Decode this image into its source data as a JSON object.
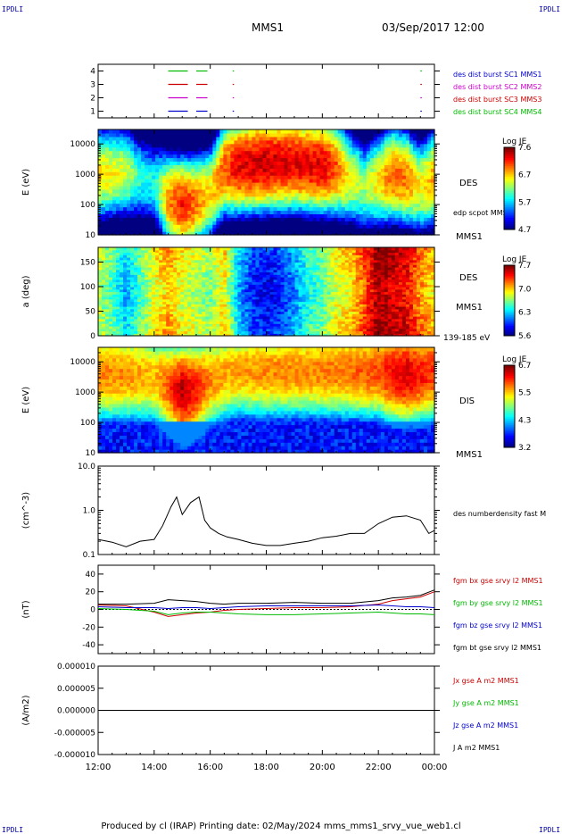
{
  "header": {
    "title": "MMS1",
    "date": "03/Sep/2017 12:00",
    "corner_left": "IPDLI",
    "corner_right": "IPDLI",
    "corner_bl": "IPDLI",
    "corner_br": "IPDLI"
  },
  "footer": {
    "text": "Produced by cl (IRAP)   Printing date: 02/May/2024   mms_mms1_srvy_vue_web1.cl"
  },
  "x_axis": {
    "ticks": [
      "12:00",
      "14:00",
      "16:00",
      "18:00",
      "20:00",
      "22:00",
      "00:00"
    ],
    "hours": [
      12,
      14,
      16,
      18,
      20,
      22,
      24
    ],
    "range": [
      12,
      24
    ]
  },
  "colors": {
    "blue": "#0000cc",
    "magenta": "#cc00cc",
    "red": "#cc0000",
    "green": "#00bb00",
    "black": "#000000"
  },
  "chart_data": [
    {
      "panel": "burst",
      "type": "scatter",
      "ylim": [
        0.5,
        4.5
      ],
      "yticks": [
        "1",
        "2",
        "3",
        "4"
      ],
      "legend": [
        {
          "text": "des dist burst SC1 MMS1",
          "color": "#0000cc"
        },
        {
          "text": "des dist burst SC2 MMS2",
          "color": "#cc00cc"
        },
        {
          "text": "des dist burst SC3 MMS3",
          "color": "#cc0000"
        },
        {
          "text": "des dist burst SC4 MMS4",
          "color": "#00bb00"
        }
      ],
      "series": [
        {
          "level": 1,
          "color": "#0000cc",
          "intervals": [
            [
              14.5,
              15.2
            ],
            [
              15.5,
              15.9
            ],
            [
              16.8,
              16.83
            ],
            [
              23.5,
              23.55
            ]
          ]
        },
        {
          "level": 2,
          "color": "#cc00cc",
          "intervals": [
            [
              14.5,
              15.2
            ],
            [
              15.5,
              15.9
            ],
            [
              16.8,
              16.83
            ],
            [
              23.5,
              23.55
            ]
          ]
        },
        {
          "level": 3,
          "color": "#cc0000",
          "intervals": [
            [
              14.5,
              15.2
            ],
            [
              15.5,
              15.9
            ],
            [
              16.8,
              16.83
            ],
            [
              23.5,
              23.55
            ]
          ]
        },
        {
          "level": 4,
          "color": "#00bb00",
          "intervals": [
            [
              14.5,
              15.2
            ],
            [
              15.5,
              15.9
            ],
            [
              16.8,
              16.83
            ],
            [
              23.5,
              23.55
            ]
          ]
        }
      ]
    },
    {
      "panel": "des_energy",
      "type": "heatmap",
      "ylabel": "E (eV)",
      "log": true,
      "ylim": [
        10,
        30000
      ],
      "yticks": [
        "10",
        "100",
        "1000",
        "10000"
      ],
      "label": "DES",
      "sublabel": "MMS1",
      "overlay_label": "edp scpot MMS1",
      "colorbar": {
        "title": "Log JE",
        "ticks": [
          "7.6",
          "6.7",
          "5.7",
          "4.7"
        ],
        "range": [
          4.7,
          7.6
        ]
      },
      "peak_energy_profile": {
        "hours": [
          12,
          13,
          13.5,
          14,
          14.5,
          15,
          15.5,
          16,
          16.5,
          17,
          18,
          19,
          20,
          20.5,
          21,
          21.5,
          22,
          22.5,
          23,
          23.5,
          24
        ],
        "logE_peak": [
          3.0,
          3.1,
          2.9,
          2.7,
          2.2,
          2.0,
          2.1,
          2.4,
          3.2,
          3.3,
          3.4,
          3.4,
          3.3,
          3.2,
          2.9,
          2.6,
          2.8,
          3.0,
          2.9,
          2.6,
          2.9
        ],
        "intensity": [
          6.6,
          6.4,
          5.9,
          5.8,
          6.8,
          7.2,
          6.9,
          6.6,
          7.0,
          7.3,
          7.4,
          7.3,
          7.3,
          7.0,
          6.5,
          6.2,
          6.6,
          7.0,
          6.9,
          6.5,
          6.8
        ]
      }
    },
    {
      "panel": "des_pitch",
      "type": "heatmap",
      "ylabel": "a (deg)",
      "ylim": [
        0,
        180
      ],
      "yticks": [
        "0",
        "50",
        "100",
        "150"
      ],
      "label": "DES",
      "sublabel": "MMS1",
      "energy_band": "139-185 eV",
      "colorbar": {
        "title": "Log JE",
        "ticks": [
          "7.7",
          "7.0",
          "6.3",
          "5.6"
        ],
        "range": [
          5.6,
          7.7
        ]
      },
      "level_profile": {
        "hours": [
          12,
          12.5,
          13,
          13.5,
          14,
          14.5,
          15,
          15.5,
          16,
          16.5,
          17,
          17.5,
          18,
          18.5,
          19,
          19.5,
          20,
          20.5,
          21,
          21.5,
          22,
          22.5,
          23,
          23.5,
          24
        ],
        "level": [
          6.7,
          6.5,
          6.2,
          6.5,
          6.8,
          7.0,
          6.8,
          6.7,
          6.6,
          6.9,
          6.2,
          5.9,
          5.8,
          5.9,
          6.1,
          6.4,
          6.5,
          6.8,
          6.9,
          7.2,
          7.6,
          7.5,
          7.4,
          7.1,
          6.9
        ]
      }
    },
    {
      "panel": "dis_energy",
      "type": "heatmap",
      "ylabel": "E (eV)",
      "log": true,
      "ylim": [
        10,
        30000
      ],
      "yticks": [
        "10",
        "100",
        "1000",
        "10000"
      ],
      "label": "DIS",
      "sublabel": "MMS1",
      "colorbar": {
        "title": "Log JE",
        "ticks": [
          "6.7",
          "5.5",
          "4.3",
          "3.2"
        ],
        "range": [
          3.2,
          6.7
        ]
      },
      "peak_energy_profile": {
        "hours": [
          12,
          13,
          14,
          14.5,
          15,
          15.5,
          16,
          16.5,
          17,
          18,
          19,
          20,
          21,
          22,
          22.5,
          23,
          23.5,
          24
        ],
        "logE_peak": [
          3.6,
          3.6,
          3.5,
          3.2,
          3.0,
          3.1,
          3.4,
          3.6,
          3.7,
          3.7,
          3.7,
          3.7,
          3.7,
          3.7,
          3.6,
          3.6,
          3.6,
          3.7
        ],
        "intensity": [
          5.8,
          5.8,
          5.6,
          6.0,
          6.5,
          6.2,
          5.8,
          5.7,
          5.7,
          5.8,
          5.8,
          5.8,
          5.9,
          6.0,
          6.3,
          6.4,
          6.2,
          6.1
        ]
      }
    },
    {
      "panel": "density",
      "type": "line",
      "ylabel": "(cm^-3)",
      "log": true,
      "ylim": [
        0.1,
        10
      ],
      "yticks": [
        "0.1",
        "1.0",
        "10.0"
      ],
      "legend": [
        {
          "text": "des numberdensity fast M",
          "color": "#000000"
        }
      ],
      "x": [
        12,
        12.5,
        13,
        13.5,
        14,
        14.3,
        14.6,
        14.8,
        15,
        15.3,
        15.6,
        15.8,
        16,
        16.3,
        16.6,
        17,
        17.5,
        18,
        18.5,
        19,
        19.5,
        20,
        20.5,
        21,
        21.5,
        22,
        22.5,
        23,
        23.5,
        23.8,
        24
      ],
      "values": [
        0.22,
        0.19,
        0.15,
        0.2,
        0.22,
        0.45,
        1.2,
        2.0,
        0.8,
        1.5,
        2.0,
        0.6,
        0.4,
        0.3,
        0.25,
        0.22,
        0.18,
        0.16,
        0.16,
        0.18,
        0.2,
        0.24,
        0.26,
        0.3,
        0.3,
        0.5,
        0.7,
        0.75,
        0.6,
        0.3,
        0.35
      ]
    },
    {
      "panel": "fgm",
      "type": "line",
      "ylabel": "(nT)",
      "ylim": [
        -50,
        50
      ],
      "yticks": [
        "-40",
        "-20",
        "0",
        "20",
        "40"
      ],
      "legend": [
        {
          "text": "fgm bx gse srvy l2 MMS1",
          "color": "#cc0000"
        },
        {
          "text": "fgm by gse srvy l2 MMS1",
          "color": "#00bb00"
        },
        {
          "text": "fgm bz gse srvy l2 MMS1",
          "color": "#0000cc"
        },
        {
          "text": "fgm bt gse srvy l2 MMS1",
          "color": "#000000"
        }
      ],
      "x": [
        12,
        13,
        14,
        14.5,
        15,
        15.5,
        16,
        16.5,
        17,
        18,
        19,
        20,
        21,
        22,
        22.5,
        23,
        23.5,
        24
      ],
      "series": [
        {
          "name": "bx",
          "color": "#cc0000",
          "values": [
            5,
            4,
            -3,
            -8,
            -6,
            -4,
            -3,
            -1,
            0,
            1,
            2,
            2,
            3,
            6,
            10,
            12,
            14,
            20
          ]
        },
        {
          "name": "by",
          "color": "#00bb00",
          "values": [
            1,
            0,
            -2,
            -6,
            -4,
            -3,
            -3,
            -4,
            -5,
            -6,
            -6,
            -5,
            -4,
            -3,
            -4,
            -5,
            -5,
            -6
          ]
        },
        {
          "name": "bz",
          "color": "#0000cc",
          "values": [
            3,
            2,
            2,
            1,
            2,
            2,
            1,
            2,
            3,
            4,
            4,
            4,
            4,
            5,
            4,
            3,
            3,
            2
          ]
        },
        {
          "name": "bt",
          "color": "#000000",
          "values": [
            6,
            6,
            7,
            11,
            10,
            9,
            7,
            6,
            7,
            7,
            8,
            7,
            7,
            10,
            13,
            14,
            16,
            22
          ]
        }
      ]
    },
    {
      "panel": "current",
      "type": "line",
      "ylabel": "(A/m2)",
      "ylim": [
        -1e-05,
        1e-05
      ],
      "yticks": [
        "-0.000010",
        "-0.000005",
        "0.000000",
        "0.000005",
        "0.000010"
      ],
      "legend": [
        {
          "text": "Jx gse A m2 MMS1",
          "color": "#cc0000"
        },
        {
          "text": "Jy gse A m2 MMS1",
          "color": "#00bb00"
        },
        {
          "text": "Jz gse A m2 MMS1",
          "color": "#0000cc"
        },
        {
          "text": "J A m2 MMS1",
          "color": "#000000"
        }
      ],
      "x": [
        12,
        24
      ],
      "values": [
        0,
        0
      ]
    }
  ]
}
